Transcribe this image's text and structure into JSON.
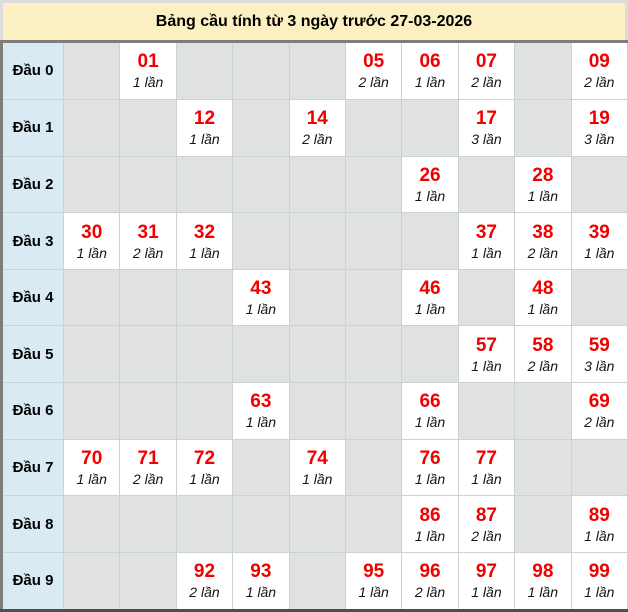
{
  "title": "Bảng cầu tính từ 3 ngày trước 27-03-2026",
  "colors": {
    "page_bg": "#dcdcdc",
    "title_bg": "#fcf0c3",
    "label_bg": "#d9eaf3",
    "empty_cell_bg": "#e0e1e1",
    "filled_cell_bg": "#ffffff",
    "number_color": "#f20000",
    "cell_border": "#ccd1d5",
    "table_frame": "#7d7d7d",
    "table_bottom_border": "#4e4e4e"
  },
  "table": {
    "columns_per_row": 10,
    "rows": [
      {
        "label": "Đầu 0",
        "cells": [
          null,
          {
            "number": "01",
            "count": "1 lần"
          },
          null,
          null,
          null,
          {
            "number": "05",
            "count": "2 lần"
          },
          {
            "number": "06",
            "count": "1 lần"
          },
          {
            "number": "07",
            "count": "2 lần"
          },
          null,
          {
            "number": "09",
            "count": "2 lần"
          }
        ]
      },
      {
        "label": "Đầu 1",
        "cells": [
          null,
          null,
          {
            "number": "12",
            "count": "1 lần"
          },
          null,
          {
            "number": "14",
            "count": "2 lần"
          },
          null,
          null,
          {
            "number": "17",
            "count": "3 lần"
          },
          null,
          {
            "number": "19",
            "count": "3 lần"
          }
        ]
      },
      {
        "label": "Đầu 2",
        "cells": [
          null,
          null,
          null,
          null,
          null,
          null,
          {
            "number": "26",
            "count": "1 lần"
          },
          null,
          {
            "number": "28",
            "count": "1 lần"
          },
          null
        ]
      },
      {
        "label": "Đầu 3",
        "cells": [
          {
            "number": "30",
            "count": "1 lần"
          },
          {
            "number": "31",
            "count": "2 lần"
          },
          {
            "number": "32",
            "count": "1 lần"
          },
          null,
          null,
          null,
          null,
          {
            "number": "37",
            "count": "1 lần"
          },
          {
            "number": "38",
            "count": "2 lần"
          },
          {
            "number": "39",
            "count": "1 lần"
          }
        ]
      },
      {
        "label": "Đầu 4",
        "cells": [
          null,
          null,
          null,
          {
            "number": "43",
            "count": "1 lần"
          },
          null,
          null,
          {
            "number": "46",
            "count": "1 lần"
          },
          null,
          {
            "number": "48",
            "count": "1 lần"
          },
          null
        ]
      },
      {
        "label": "Đầu 5",
        "cells": [
          null,
          null,
          null,
          null,
          null,
          null,
          null,
          {
            "number": "57",
            "count": "1 lần"
          },
          {
            "number": "58",
            "count": "2 lần"
          },
          {
            "number": "59",
            "count": "3 lần"
          }
        ]
      },
      {
        "label": "Đầu 6",
        "cells": [
          null,
          null,
          null,
          {
            "number": "63",
            "count": "1 lần"
          },
          null,
          null,
          {
            "number": "66",
            "count": "1 lần"
          },
          null,
          null,
          {
            "number": "69",
            "count": "2 lần"
          }
        ]
      },
      {
        "label": "Đầu 7",
        "cells": [
          {
            "number": "70",
            "count": "1 lần"
          },
          {
            "number": "71",
            "count": "2 lần"
          },
          {
            "number": "72",
            "count": "1 lần"
          },
          null,
          {
            "number": "74",
            "count": "1 lần"
          },
          null,
          {
            "number": "76",
            "count": "1 lần"
          },
          {
            "number": "77",
            "count": "1 lần"
          },
          null,
          null
        ]
      },
      {
        "label": "Đầu 8",
        "cells": [
          null,
          null,
          null,
          null,
          null,
          null,
          {
            "number": "86",
            "count": "1 lần"
          },
          {
            "number": "87",
            "count": "2 lần"
          },
          null,
          {
            "number": "89",
            "count": "1 lần"
          }
        ]
      },
      {
        "label": "Đầu 9",
        "cells": [
          null,
          null,
          {
            "number": "92",
            "count": "2 lần"
          },
          {
            "number": "93",
            "count": "1 lần"
          },
          null,
          {
            "number": "95",
            "count": "1 lần"
          },
          {
            "number": "96",
            "count": "2 lần"
          },
          {
            "number": "97",
            "count": "1 lần"
          },
          {
            "number": "98",
            "count": "1 lần"
          },
          {
            "number": "99",
            "count": "1 lần"
          }
        ]
      }
    ]
  }
}
